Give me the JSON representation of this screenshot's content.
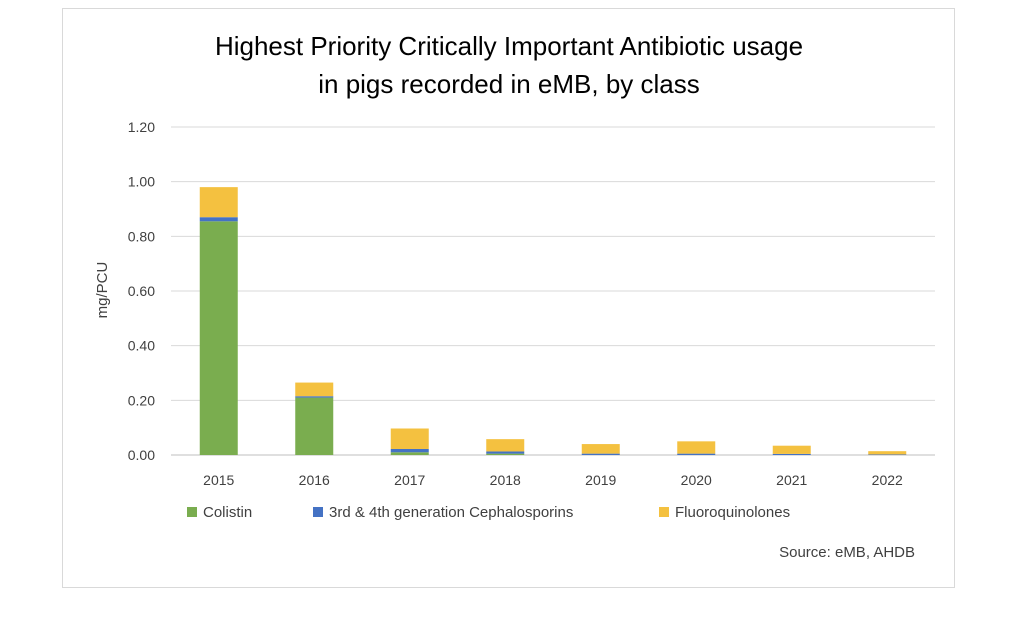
{
  "chart_data": {
    "type": "bar",
    "stacked": true,
    "title_lines": [
      "Highest Priority Critically Important Antibiotic usage",
      "in pigs recorded in eMB, by class"
    ],
    "xlabel": "",
    "ylabel": "mg/PCU",
    "ylim": [
      0,
      1.2
    ],
    "yticks": [
      "0.00",
      "0.20",
      "0.40",
      "0.60",
      "0.80",
      "1.00",
      "1.20"
    ],
    "grid": true,
    "legend_position": "bottom",
    "categories": [
      "2015",
      "2016",
      "2017",
      "2018",
      "2019",
      "2020",
      "2021",
      "2022"
    ],
    "series": [
      {
        "name": "Colistin",
        "color": "#7aad4f",
        "values": [
          0.855,
          0.21,
          0.01,
          0.005,
          0.0,
          0.0,
          0.0,
          0.0
        ]
      },
      {
        "name": "3rd & 4th generation Cephalosporins",
        "color": "#4472c4",
        "values": [
          0.015,
          0.005,
          0.012,
          0.008,
          0.005,
          0.005,
          0.004,
          0.002
        ]
      },
      {
        "name": "Fluoroquinolones",
        "color": "#f4c140",
        "values": [
          0.11,
          0.05,
          0.075,
          0.045,
          0.035,
          0.045,
          0.03,
          0.012
        ]
      }
    ],
    "source": "Source: eMB, AHDB"
  }
}
